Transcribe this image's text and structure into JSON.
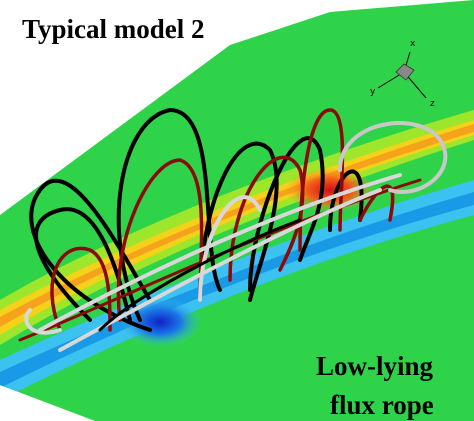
{
  "figure": {
    "title": "Typical model 2",
    "annotation": {
      "line1": "Low-lying",
      "line2": "flux rope"
    },
    "axes_triad": {
      "x": "x",
      "y": "y",
      "z": "z"
    }
  }
}
